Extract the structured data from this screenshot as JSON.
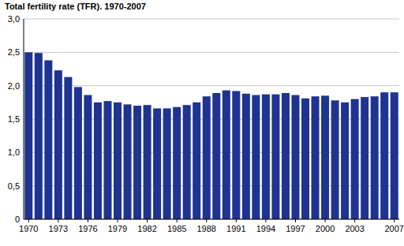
{
  "chart_data": {
    "type": "bar",
    "title": "Total fertility rate (TFR). 1970-2007",
    "categories": [
      "1970",
      null,
      null,
      "1973",
      null,
      null,
      "1976",
      null,
      null,
      "1979",
      null,
      null,
      "1982",
      null,
      null,
      "1985",
      null,
      null,
      "1988",
      null,
      null,
      "1991",
      null,
      null,
      "1994",
      null,
      null,
      "1997",
      null,
      null,
      "2000",
      null,
      null,
      "2003",
      null,
      null,
      null,
      "2007"
    ],
    "values": [
      2.5,
      2.49,
      2.38,
      2.23,
      2.13,
      1.98,
      1.86,
      1.75,
      1.77,
      1.75,
      1.72,
      1.7,
      1.71,
      1.66,
      1.66,
      1.68,
      1.71,
      1.75,
      1.84,
      1.89,
      1.93,
      1.92,
      1.88,
      1.86,
      1.87,
      1.87,
      1.89,
      1.86,
      1.81,
      1.84,
      1.85,
      1.78,
      1.75,
      1.8,
      1.83,
      1.84,
      1.9,
      1.9
    ],
    "color": "#1f3390",
    "ylim": [
      0,
      3
    ],
    "yticks": [
      {
        "value": 0,
        "label": "0"
      },
      {
        "value": 0.5,
        "label": "0,5"
      },
      {
        "value": 1,
        "label": "1,0"
      },
      {
        "value": 1.5,
        "label": "1,5"
      },
      {
        "value": 2,
        "label": "2,0"
      },
      {
        "value": 2.5,
        "label": "2,5"
      },
      {
        "value": 3,
        "label": "3,0"
      }
    ],
    "grid": true
  }
}
